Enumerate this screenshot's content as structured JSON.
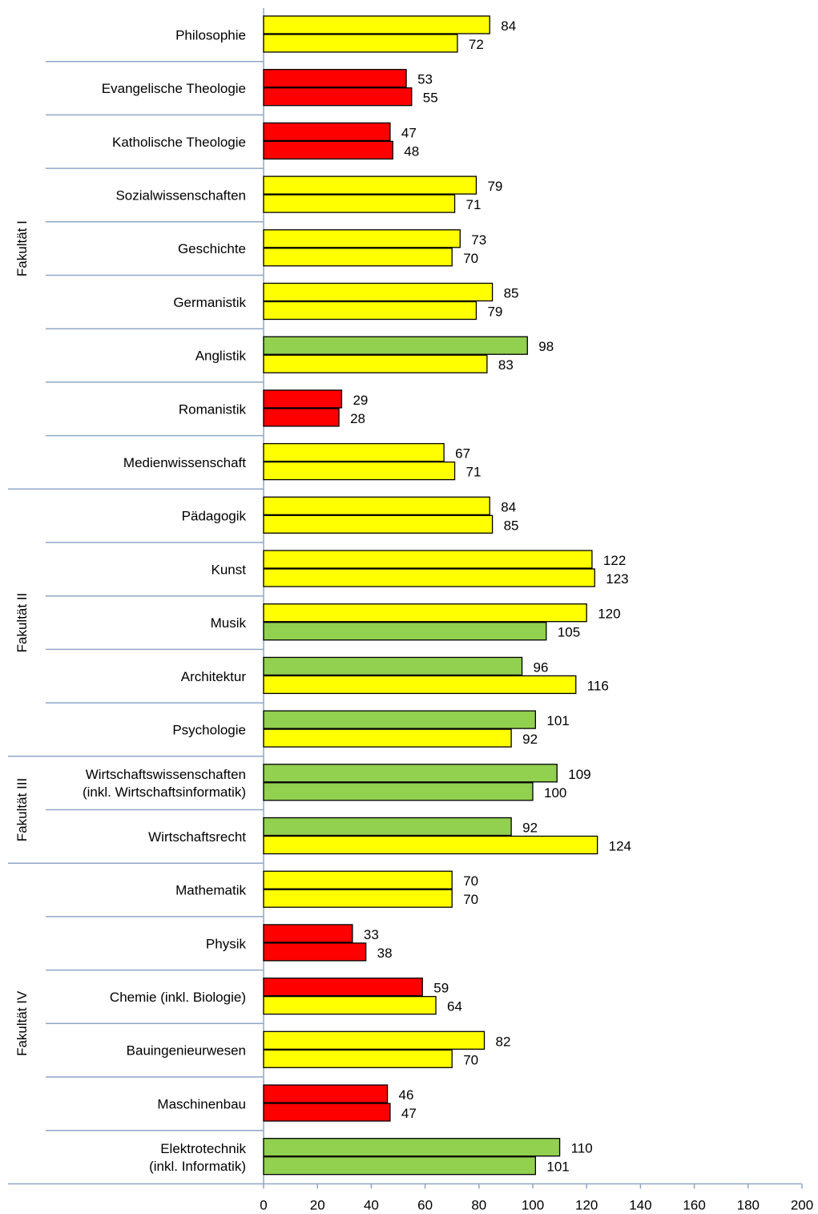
{
  "chart_data": {
    "type": "bar",
    "orientation": "horizontal",
    "title": "",
    "xlabel": "",
    "ylabel": "",
    "xlim": [
      0,
      200
    ],
    "x_ticks": [
      0,
      20,
      40,
      60,
      80,
      100,
      120,
      140,
      160,
      180,
      200
    ],
    "grid": false,
    "legend": "none",
    "colors": {
      "red": "#FF0000",
      "yellow": "#FFFF00",
      "green": "#92D050"
    },
    "groups": [
      {
        "label": "Fakultät I",
        "categories": [
          {
            "label": [
              "Philosophie"
            ],
            "values": [
              84,
              72
            ],
            "colors": [
              "yellow",
              "yellow"
            ]
          },
          {
            "label": [
              "Evangelische Theologie"
            ],
            "values": [
              53,
              55
            ],
            "colors": [
              "red",
              "red"
            ]
          },
          {
            "label": [
              "Katholische Theologie"
            ],
            "values": [
              47,
              48
            ],
            "colors": [
              "red",
              "red"
            ]
          },
          {
            "label": [
              "Sozialwissenschaften"
            ],
            "values": [
              79,
              71
            ],
            "colors": [
              "yellow",
              "yellow"
            ]
          },
          {
            "label": [
              "Geschichte"
            ],
            "values": [
              73,
              70
            ],
            "colors": [
              "yellow",
              "yellow"
            ]
          },
          {
            "label": [
              "Germanistik"
            ],
            "values": [
              85,
              79
            ],
            "colors": [
              "yellow",
              "yellow"
            ]
          },
          {
            "label": [
              "Anglistik"
            ],
            "values": [
              98,
              83
            ],
            "colors": [
              "green",
              "yellow"
            ]
          },
          {
            "label": [
              "Romanistik"
            ],
            "values": [
              29,
              28
            ],
            "colors": [
              "red",
              "red"
            ]
          },
          {
            "label": [
              "Medienwissenschaft"
            ],
            "values": [
              67,
              71
            ],
            "colors": [
              "yellow",
              "yellow"
            ]
          }
        ]
      },
      {
        "label": "Fakultät II",
        "categories": [
          {
            "label": [
              "Pädagogik"
            ],
            "values": [
              84,
              85
            ],
            "colors": [
              "yellow",
              "yellow"
            ]
          },
          {
            "label": [
              "Kunst"
            ],
            "values": [
              122,
              123
            ],
            "colors": [
              "yellow",
              "yellow"
            ]
          },
          {
            "label": [
              "Musik"
            ],
            "values": [
              120,
              105
            ],
            "colors": [
              "yellow",
              "green"
            ]
          },
          {
            "label": [
              "Architektur"
            ],
            "values": [
              96,
              116
            ],
            "colors": [
              "green",
              "yellow"
            ]
          },
          {
            "label": [
              "Psychologie"
            ],
            "values": [
              101,
              92
            ],
            "colors": [
              "green",
              "yellow"
            ]
          }
        ]
      },
      {
        "label": "Fakultät III",
        "categories": [
          {
            "label": [
              "Wirtschaftswissenschaften",
              "(inkl. Wirtschaftsinformatik)"
            ],
            "values": [
              109,
              100
            ],
            "colors": [
              "green",
              "green"
            ]
          },
          {
            "label": [
              "Wirtschaftsrecht"
            ],
            "values": [
              92,
              124
            ],
            "colors": [
              "green",
              "yellow"
            ]
          }
        ]
      },
      {
        "label": "Fakultät IV",
        "categories": [
          {
            "label": [
              "Mathematik"
            ],
            "values": [
              70,
              70
            ],
            "colors": [
              "yellow",
              "yellow"
            ]
          },
          {
            "label": [
              "Physik"
            ],
            "values": [
              33,
              38
            ],
            "colors": [
              "red",
              "red"
            ]
          },
          {
            "label": [
              "Chemie (inkl. Biologie)"
            ],
            "values": [
              59,
              64
            ],
            "colors": [
              "red",
              "yellow"
            ]
          },
          {
            "label": [
              "Bauingenieurwesen"
            ],
            "values": [
              82,
              70
            ],
            "colors": [
              "yellow",
              "yellow"
            ]
          },
          {
            "label": [
              "Maschinenbau"
            ],
            "values": [
              46,
              47
            ],
            "colors": [
              "red",
              "red"
            ]
          },
          {
            "label": [
              "Elektrotechnik",
              "(inkl. Informatik)"
            ],
            "values": [
              110,
              101
            ],
            "colors": [
              "green",
              "green"
            ]
          }
        ]
      }
    ]
  }
}
